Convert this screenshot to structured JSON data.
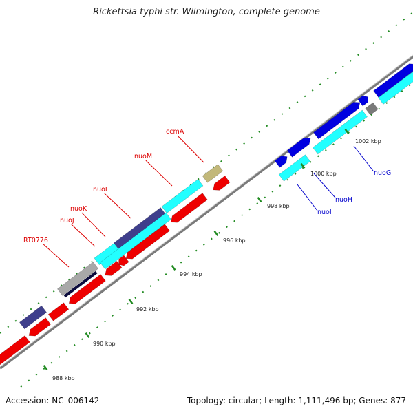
{
  "title": "Rickettsia typhi str. Wilmington, complete genome",
  "footer": {
    "accession": "Accession: NC_006142",
    "summary": "Topology: circular; Length: 1,111,496 bp; Genes: 877"
  },
  "colors": {
    "forward_cds": "#0000e0",
    "reverse_cds": "#ee0000",
    "rna_cyan": "#22ffff",
    "navy": "#3f3f8c",
    "gray": "#a8a8a8",
    "khaki": "#c2b87a",
    "label_red": "#dd0000",
    "label_blue": "#0000cc",
    "tick_green": "#228b22"
  },
  "scale_labels": [
    "988 kbp",
    "990 kbp",
    "992 kbp",
    "994 kbp",
    "996 kbp",
    "998 kbp",
    "1000 kbp",
    "1002 kbp"
  ],
  "gene_labels": {
    "reverse": [
      "RT0776",
      "nuoJ",
      "nuoK",
      "nuoL",
      "nuoM",
      "ccmA"
    ],
    "forward": [
      "nuoI",
      "nuoH",
      "nuoG"
    ]
  }
}
